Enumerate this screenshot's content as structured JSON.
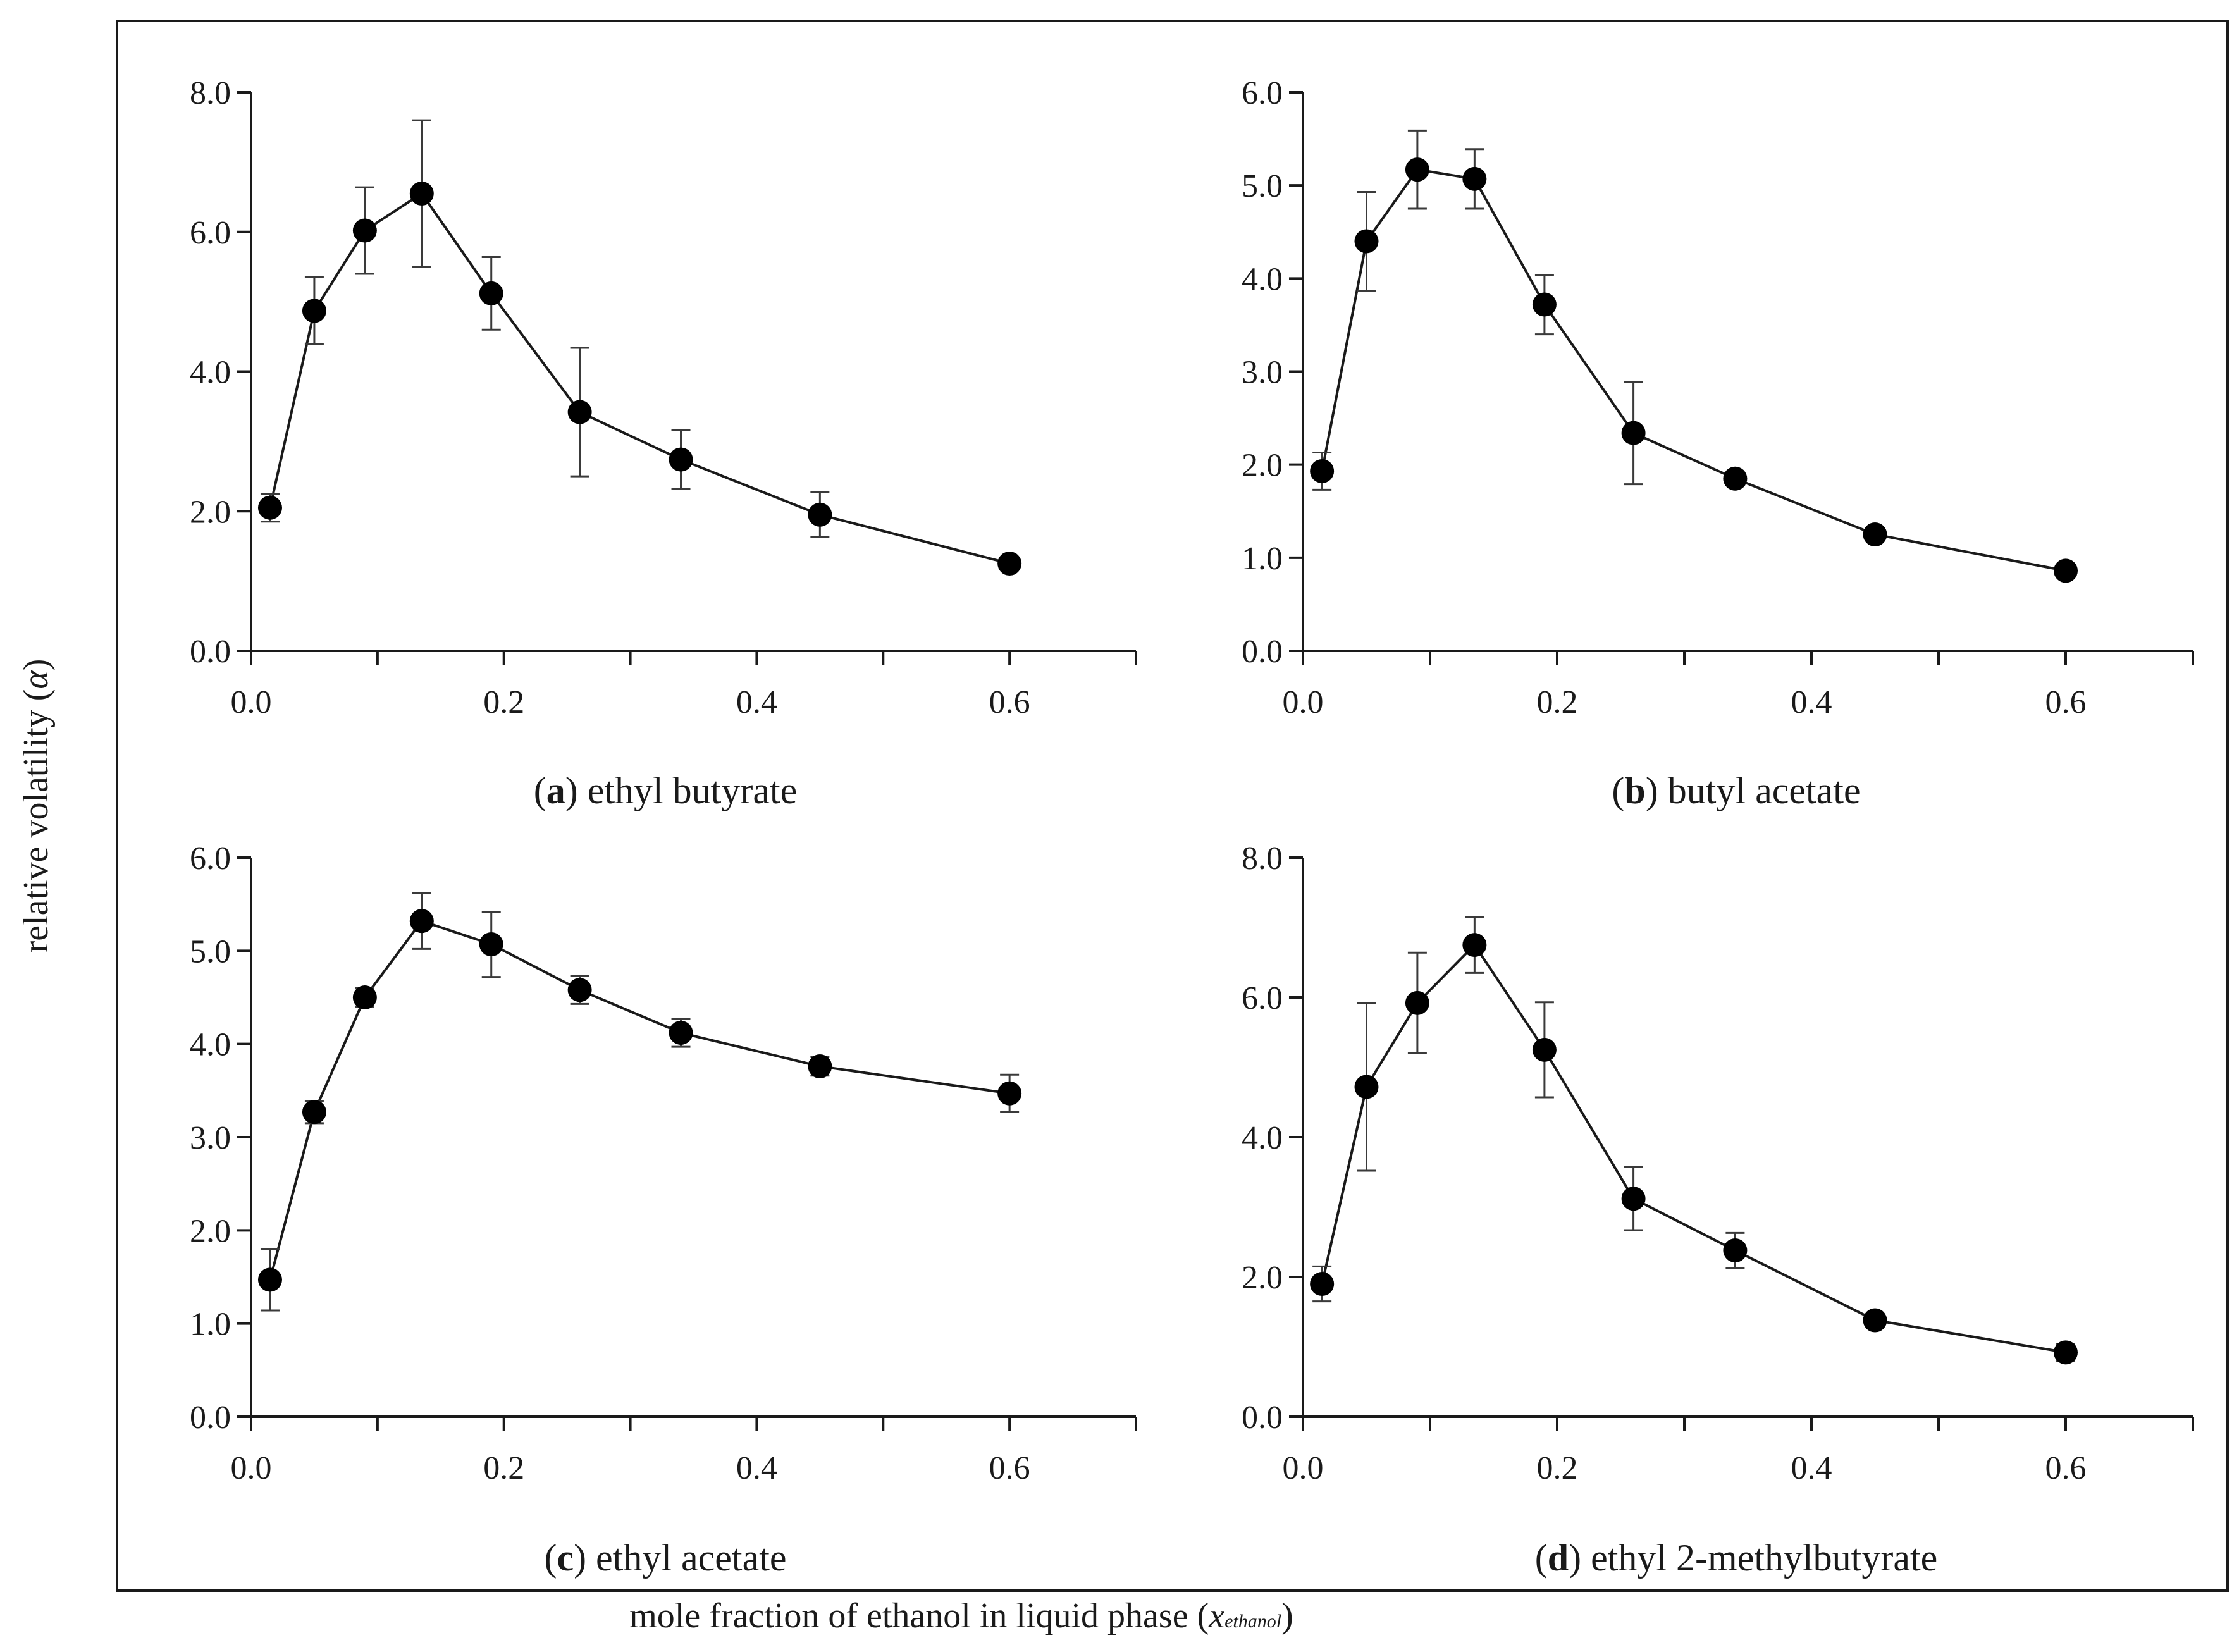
{
  "figure": {
    "ylabel": "relative volatility (",
    "ylabel_symbol": "α",
    "ylabel_close": ")",
    "xlabel": "mole fraction of ethanol in liquid phase (",
    "xlabel_symbol": "x",
    "xlabel_subscript": "ethanol",
    "xlabel_close": ")"
  },
  "chart_data": [
    {
      "type": "line",
      "caption_prefix": "(",
      "caption_letter": "a",
      "caption_text": ") ethyl butyrate",
      "xlim": [
        0,
        0.7
      ],
      "ylim": [
        0,
        8
      ],
      "xticks": [
        "0.0",
        "0.2",
        "0.4",
        "0.6"
      ],
      "yticks": [
        "0.0",
        "2.0",
        "4.0",
        "6.0",
        "8.0"
      ],
      "x": [
        0.015,
        0.05,
        0.09,
        0.135,
        0.19,
        0.26,
        0.34,
        0.45,
        0.6
      ],
      "values": [
        2.05,
        4.87,
        6.02,
        6.55,
        5.12,
        3.42,
        2.74,
        1.95,
        1.25
      ],
      "errors": [
        0.2,
        0.48,
        0.62,
        1.05,
        0.52,
        0.92,
        0.42,
        0.32,
        0.08
      ]
    },
    {
      "type": "line",
      "caption_prefix": "(",
      "caption_letter": "b",
      "caption_text": ") butyl acetate",
      "xlim": [
        0,
        0.7
      ],
      "ylim": [
        0,
        6
      ],
      "xticks": [
        "0.0",
        "0.2",
        "0.4",
        "0.6"
      ],
      "yticks": [
        "0.0",
        "1.0",
        "2.0",
        "3.0",
        "4.0",
        "5.0",
        "6.0"
      ],
      "x": [
        0.015,
        0.05,
        0.09,
        0.135,
        0.19,
        0.26,
        0.34,
        0.45,
        0.6
      ],
      "values": [
        1.93,
        4.4,
        5.17,
        5.07,
        3.72,
        2.34,
        1.85,
        1.25,
        0.86
      ],
      "errors": [
        0.2,
        0.53,
        0.42,
        0.32,
        0.32,
        0.55,
        0.06,
        0.06,
        0.07
      ]
    },
    {
      "type": "line",
      "caption_prefix": "(",
      "caption_letter": "c",
      "caption_text": ") ethyl acetate",
      "xlim": [
        0,
        0.7
      ],
      "ylim": [
        0,
        6
      ],
      "xticks": [
        "0.0",
        "0.2",
        "0.4",
        "0.6"
      ],
      "yticks": [
        "0.0",
        "1.0",
        "2.0",
        "3.0",
        "4.0",
        "5.0",
        "6.0"
      ],
      "x": [
        0.015,
        0.05,
        0.09,
        0.135,
        0.19,
        0.26,
        0.34,
        0.45,
        0.6
      ],
      "values": [
        1.47,
        3.27,
        4.5,
        5.32,
        5.07,
        4.58,
        4.12,
        3.76,
        3.47
      ],
      "errors": [
        0.33,
        0.12,
        0.1,
        0.3,
        0.35,
        0.15,
        0.15,
        0.1,
        0.2
      ]
    },
    {
      "type": "line",
      "caption_prefix": "(",
      "caption_letter": "d",
      "caption_text": ") ethyl 2-methylbutyrate",
      "xlim": [
        0,
        0.7
      ],
      "ylim": [
        0,
        8
      ],
      "xticks": [
        "0.0",
        "0.2",
        "0.4",
        "0.6"
      ],
      "yticks": [
        "0.0",
        "2.0",
        "4.0",
        "6.0",
        "8.0"
      ],
      "x": [
        0.015,
        0.05,
        0.09,
        0.135,
        0.19,
        0.26,
        0.34,
        0.45,
        0.6
      ],
      "values": [
        1.9,
        4.72,
        5.92,
        6.75,
        5.25,
        3.12,
        2.38,
        1.38,
        0.92
      ],
      "errors": [
        0.25,
        1.2,
        0.72,
        0.4,
        0.68,
        0.45,
        0.25,
        0.06,
        0.12
      ]
    }
  ]
}
